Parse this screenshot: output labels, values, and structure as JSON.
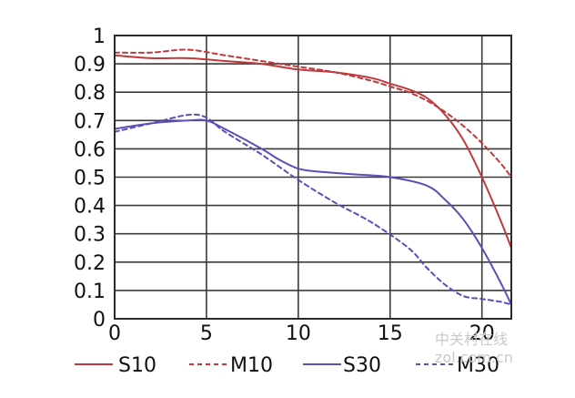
{
  "chart_data": {
    "type": "line",
    "title": "",
    "xlabel": "",
    "ylabel": "",
    "xlim": [
      0,
      21.6
    ],
    "ylim": [
      0,
      1
    ],
    "x_ticks": [
      0,
      5,
      10,
      15,
      20
    ],
    "x_tick_labels": [
      "0",
      "5",
      "10",
      "15",
      "20"
    ],
    "y_ticks": [
      0,
      0.1,
      0.2,
      0.3,
      0.4,
      0.5,
      0.6,
      0.7,
      0.8,
      0.9,
      1
    ],
    "y_tick_labels": [
      "0",
      "0.1",
      "0.2",
      "0.3",
      "0.4",
      "0.5",
      "0.6",
      "0.7",
      "0.8",
      "0.9",
      "1"
    ],
    "grid": true,
    "legend_position": "bottom",
    "series": [
      {
        "name": "S10",
        "color": "#c0393b",
        "dash": "solid",
        "x": [
          0,
          2,
          4,
          6,
          8,
          10,
          12,
          14,
          15,
          16,
          17,
          18,
          19,
          20,
          21,
          21.6
        ],
        "y": [
          0.93,
          0.92,
          0.92,
          0.91,
          0.9,
          0.88,
          0.87,
          0.85,
          0.83,
          0.81,
          0.78,
          0.72,
          0.63,
          0.5,
          0.35,
          0.25
        ]
      },
      {
        "name": "M10",
        "color": "#c0393b",
        "dash": "dashed",
        "x": [
          0,
          2,
          4,
          6,
          8,
          10,
          12,
          14,
          15,
          16,
          17,
          18,
          19,
          20,
          21,
          21.6
        ],
        "y": [
          0.94,
          0.94,
          0.95,
          0.93,
          0.91,
          0.89,
          0.87,
          0.84,
          0.82,
          0.8,
          0.77,
          0.73,
          0.68,
          0.62,
          0.55,
          0.5
        ]
      },
      {
        "name": "S30",
        "color": "#5b4fb8",
        "dash": "solid",
        "x": [
          0,
          2,
          4,
          5,
          6,
          8,
          9,
          10,
          11,
          13,
          15,
          17,
          18,
          19,
          20,
          21,
          21.6
        ],
        "y": [
          0.67,
          0.69,
          0.7,
          0.7,
          0.67,
          0.6,
          0.56,
          0.53,
          0.52,
          0.51,
          0.5,
          0.47,
          0.42,
          0.35,
          0.25,
          0.13,
          0.05
        ]
      },
      {
        "name": "M30",
        "color": "#5b4fb8",
        "dash": "dashed",
        "x": [
          0,
          2,
          4,
          5,
          6,
          8,
          10,
          12,
          14,
          16,
          17,
          18,
          19,
          20,
          21,
          21.6
        ],
        "y": [
          0.66,
          0.69,
          0.72,
          0.71,
          0.66,
          0.58,
          0.49,
          0.41,
          0.34,
          0.25,
          0.18,
          0.12,
          0.08,
          0.07,
          0.06,
          0.05
        ]
      }
    ]
  },
  "watermark": {
    "line1": "中关村在线",
    "line2": "zol.com.cn"
  }
}
